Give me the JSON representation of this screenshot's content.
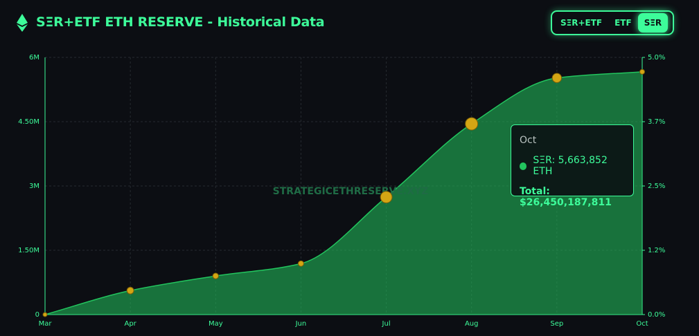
{
  "header": {
    "title": "SΞR+ETF ETH RESERVE - Historical Data",
    "toggles": [
      "SΞR+ETF",
      "ETF",
      "SΞR"
    ],
    "active_toggle": 2
  },
  "chart_data": {
    "type": "area",
    "categories": [
      "Mar",
      "Apr",
      "May",
      "Jun",
      "Jul",
      "Aug",
      "Sep",
      "Oct"
    ],
    "series": [
      {
        "name": "SΞR",
        "color": "#22c55e",
        "values": [
          0,
          560000,
          900000,
          1190000,
          2740000,
          4450000,
          5520000,
          5663852
        ]
      }
    ],
    "ylim": [
      0,
      6000000
    ],
    "yticks": [
      0,
      {
        "value": 1500000,
        "label": "1.50M"
      },
      {
        "value": 3000000,
        "label": "3M"
      },
      {
        "value": 4500000,
        "label": "4.50M"
      },
      {
        "value": 6000000,
        "label": "6M"
      }
    ],
    "y2lim": [
      0,
      5
    ],
    "y2ticks": [
      {
        "value": 0,
        "label": "0.0%"
      },
      {
        "value": 1.25,
        "label": "1.2%"
      },
      {
        "value": 2.5,
        "label": "2.5%"
      },
      {
        "value": 3.75,
        "label": "3.7%"
      },
      {
        "value": 5,
        "label": "5.0%"
      }
    ],
    "grid": true,
    "watermark": "STRATEGICETHRESERVE.XYZ",
    "tooltip": {
      "category": "Oct",
      "series_text": "SΞR: 5,663,852 ETH",
      "total_text": "Total: $26,450,187,811"
    }
  }
}
